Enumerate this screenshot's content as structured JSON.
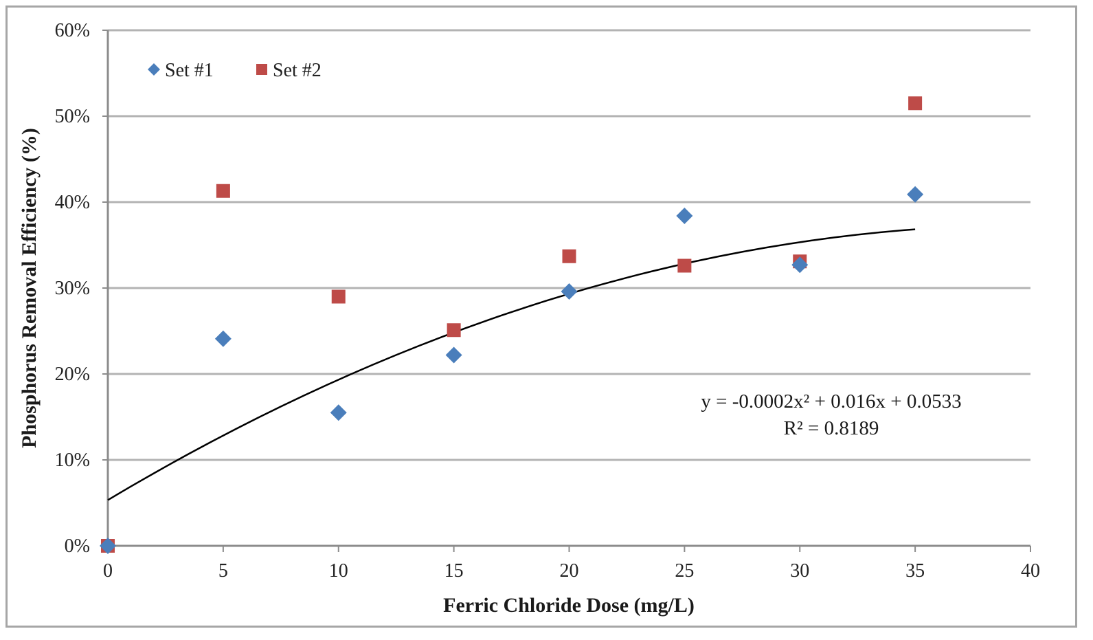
{
  "chart_data": {
    "type": "scatter",
    "title": "",
    "xlabel": "Ferric Chloride Dose (mg/L)",
    "ylabel": "Phosphorus Removal Efficiency (%)",
    "xlim": [
      0,
      40
    ],
    "ylim": [
      0,
      0.6
    ],
    "x_ticks": [
      0,
      5,
      10,
      15,
      20,
      25,
      30,
      35,
      40
    ],
    "x_tick_labels": [
      "0",
      "5",
      "10",
      "15",
      "20",
      "25",
      "30",
      "35",
      "40"
    ],
    "y_ticks": [
      0,
      0.1,
      0.2,
      0.3,
      0.4,
      0.5,
      0.6
    ],
    "y_tick_labels": [
      "0%",
      "10%",
      "20%",
      "30%",
      "40%",
      "50%",
      "60%"
    ],
    "grid": "horizontal",
    "legend_position": "top-left",
    "series": [
      {
        "name": "Set #1",
        "marker": "diamond",
        "color": "#4a7ebb",
        "x": [
          0,
          5,
          10,
          15,
          20,
          25,
          30,
          35
        ],
        "y": [
          0,
          0.241,
          0.155,
          0.222,
          0.296,
          0.384,
          0.327,
          0.409
        ]
      },
      {
        "name": "Set #2",
        "marker": "square",
        "color": "#be4b48",
        "x": [
          0,
          5,
          10,
          15,
          20,
          25,
          30,
          35
        ],
        "y": [
          0,
          0.413,
          0.29,
          0.251,
          0.337,
          0.326,
          0.331,
          0.515
        ]
      }
    ],
    "trendline": {
      "type": "polynomial",
      "coefficients": [
        -0.0002,
        0.016,
        0.0533
      ],
      "x_range": [
        0,
        35
      ],
      "color": "#000000",
      "equation_label": "y = -0.0002x² + 0.016x + 0.0533",
      "r2_label": "R² = 0.8189"
    }
  }
}
